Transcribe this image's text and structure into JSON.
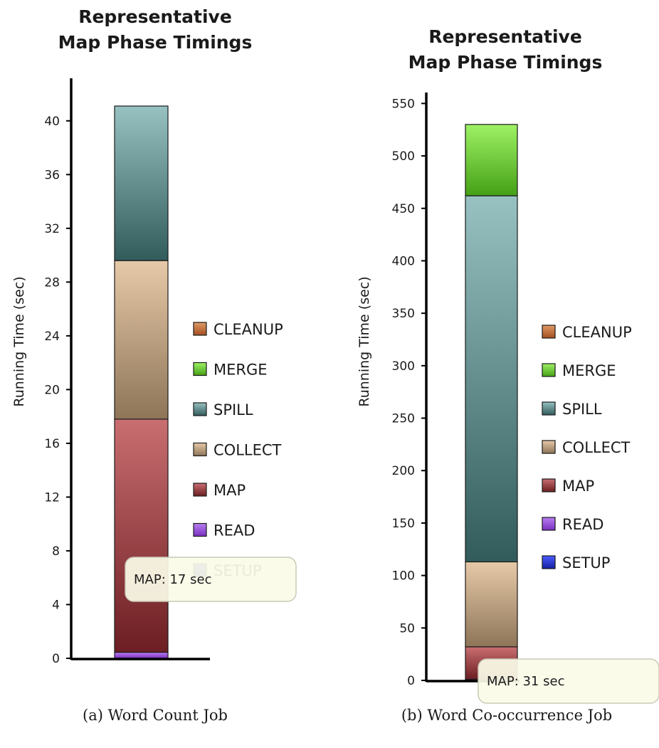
{
  "chart_data": [
    {
      "type": "bar",
      "stacked": true,
      "title": "Representative\nMap Phase Timings",
      "ylabel": "Running Time (sec)",
      "xlabel": "",
      "ylim": [
        0,
        43
      ],
      "yticks": [
        0,
        4,
        8,
        12,
        16,
        20,
        24,
        28,
        32,
        36,
        40
      ],
      "grid": false,
      "legend_position": "right",
      "legend": [
        "CLEANUP",
        "MERGE",
        "SPILL",
        "COLLECT",
        "MAP",
        "READ",
        "SETUP"
      ],
      "series": [
        {
          "name": "SETUP",
          "value": 0.0,
          "color": "#2a38d4"
        },
        {
          "name": "READ",
          "value": 0.45,
          "color": "#9a4fd6"
        },
        {
          "name": "MAP",
          "value": 17.35,
          "color": "#b3565a"
        },
        {
          "name": "COLLECT",
          "value": 11.8,
          "color": "#bfa27e"
        },
        {
          "name": "SPILL",
          "value": 11.5,
          "color": "#5f9393"
        },
        {
          "name": "MERGE",
          "value": 0.0,
          "color": "#6ac435"
        },
        {
          "name": "CLEANUP",
          "value": 0.0,
          "color": "#c8733d"
        }
      ],
      "tooltip": "MAP: 17 sec",
      "caption": "(a) Word Count Job"
    },
    {
      "type": "bar",
      "stacked": true,
      "title": "Representative\nMap Phase Timings",
      "ylabel": "Running Time (sec)",
      "xlabel": "",
      "ylim": [
        0,
        560
      ],
      "yticks": [
        0,
        50,
        100,
        150,
        200,
        250,
        300,
        350,
        400,
        450,
        500,
        550
      ],
      "grid": false,
      "legend_position": "right",
      "legend": [
        "CLEANUP",
        "MERGE",
        "SPILL",
        "COLLECT",
        "MAP",
        "READ",
        "SETUP"
      ],
      "series": [
        {
          "name": "SETUP",
          "value": 0.0,
          "color": "#2a38d4"
        },
        {
          "name": "READ",
          "value": 1.0,
          "color": "#9a4fd6"
        },
        {
          "name": "MAP",
          "value": 31.0,
          "color": "#b3565a"
        },
        {
          "name": "COLLECT",
          "value": 81.0,
          "color": "#bfa27e"
        },
        {
          "name": "SPILL",
          "value": 349.0,
          "color": "#5f9393"
        },
        {
          "name": "MERGE",
          "value": 68.0,
          "color": "#6ac435"
        },
        {
          "name": "CLEANUP",
          "value": 0.0,
          "color": "#c8733d"
        }
      ],
      "tooltip": "MAP: 31 sec",
      "caption": "(b) Word Co-occurrence Job"
    }
  ]
}
